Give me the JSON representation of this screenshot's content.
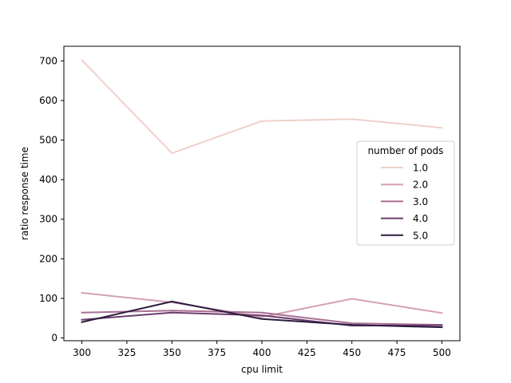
{
  "chart_data": {
    "type": "line",
    "title": "",
    "xlabel": "cpu limit",
    "ylabel": "ratio response time",
    "xlim": [
      290,
      510
    ],
    "ylim": [
      -7,
      737
    ],
    "xticks": [
      300,
      325,
      350,
      375,
      400,
      425,
      450,
      475,
      500
    ],
    "yticks": [
      0,
      100,
      200,
      300,
      400,
      500,
      600,
      700
    ],
    "grid": false,
    "legend": {
      "title": "number of pods",
      "placement": "center-right"
    },
    "x": [
      300,
      350,
      400,
      450,
      500
    ],
    "series": [
      {
        "name": "1.0",
        "color": "#efd0cb",
        "values": [
          702,
          467,
          548,
          553,
          531
        ]
      },
      {
        "name": "2.0",
        "color": "#d3a0b1",
        "values": [
          114,
          90,
          53,
          99,
          63
        ]
      },
      {
        "name": "3.0",
        "color": "#a86e93",
        "values": [
          64,
          69,
          64,
          37,
          33
        ]
      },
      {
        "name": "4.0",
        "color": "#6b3d6e",
        "values": [
          46,
          64,
          57,
          31,
          32
        ]
      },
      {
        "name": "5.0",
        "color": "#2b1b3d",
        "values": [
          40,
          92,
          48,
          33,
          27
        ]
      }
    ]
  }
}
